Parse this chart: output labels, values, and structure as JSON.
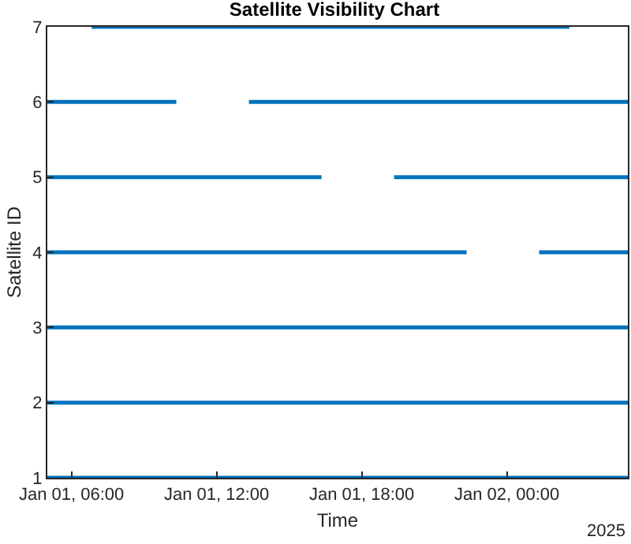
{
  "chart_data": {
    "type": "line",
    "title": "Satellite Visibility Chart",
    "xlabel": "Time",
    "ylabel": "Satellite ID",
    "annotations": [
      "2025"
    ],
    "xlim": [
      "2025-01-01T05:00",
      "2025-01-02T05:00"
    ],
    "xticks": [
      {
        "value": "2025-01-01T06:00",
        "label": "Jan 01, 06:00"
      },
      {
        "value": "2025-01-01T12:00",
        "label": "Jan 01, 12:00"
      },
      {
        "value": "2025-01-01T18:00",
        "label": "Jan 01, 18:00"
      },
      {
        "value": "2025-01-02T00:00",
        "label": "Jan 02, 00:00"
      }
    ],
    "ylim": [
      1,
      7
    ],
    "yticks": [
      1,
      2,
      3,
      4,
      5,
      6,
      7
    ],
    "marker": "none",
    "line_style": "solid",
    "series": [
      {
        "color": "#0072bd",
        "x": [
          "2025-01-01T05:00",
          "2025-01-02T05:00"
        ],
        "values": [
          1,
          1
        ]
      },
      {
        "color": "#0072bd",
        "x": [
          "2025-01-01T05:00",
          "2025-01-02T05:00"
        ],
        "values": [
          2,
          2
        ]
      },
      {
        "color": "#0072bd",
        "x": [
          "2025-01-01T05:00",
          "2025-01-02T05:00"
        ],
        "values": [
          3,
          3
        ]
      },
      {
        "color": "#0072bd",
        "x": [
          "2025-01-01T05:00",
          "2025-01-01T22:20",
          "2025-01-01T23:50",
          "2025-01-02T01:20",
          "2025-01-02T05:00"
        ],
        "values": [
          4,
          4,
          null,
          4,
          4
        ]
      },
      {
        "color": "#0072bd",
        "x": [
          "2025-01-01T05:00",
          "2025-01-01T16:20",
          "2025-01-01T17:50",
          "2025-01-01T19:20",
          "2025-01-02T05:00"
        ],
        "values": [
          5,
          5,
          null,
          5,
          5
        ]
      },
      {
        "color": "#0072bd",
        "x": [
          "2025-01-01T05:00",
          "2025-01-01T10:20",
          "2025-01-01T11:50",
          "2025-01-01T13:20",
          "2025-01-02T05:00"
        ],
        "values": [
          6,
          6,
          null,
          6,
          6
        ]
      },
      {
        "color": "#0072bd",
        "x": [
          "2025-01-01T06:50",
          "2025-01-02T02:35"
        ],
        "values": [
          7,
          7
        ]
      }
    ]
  }
}
